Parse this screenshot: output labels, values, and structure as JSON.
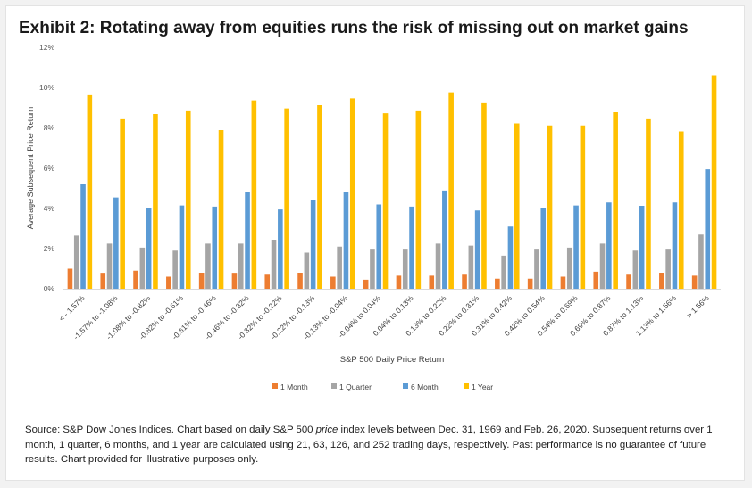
{
  "title": "Exhibit 2:  Rotating away from equities runs the risk of missing out on market gains",
  "chart_data": {
    "type": "bar",
    "xlabel": "S&P 500 Daily Price Return",
    "ylabel": "Average Subsequent Price Return",
    "ylim": [
      0,
      12
    ],
    "yticks": [
      0,
      2,
      4,
      6,
      8,
      10,
      12
    ],
    "ytick_labels": [
      "0%",
      "2%",
      "4%",
      "6%",
      "8%",
      "10%",
      "12%"
    ],
    "grid": false,
    "legend_position": "bottom",
    "categories": [
      "< - 1.57%",
      "-1.57% to -1.08%",
      "-1.08% to -0.82%",
      "-0.82% to -0.61%",
      "-0.61% to -0.46%",
      "-0.46% to -0.32%",
      "-0.32% to -0.22%",
      "-0.22% to -0.13%",
      "-0.13% to -0.04%",
      "-0.04% to 0.04%",
      "0.04% to 0.13%",
      "0.13% to 0.22%",
      "0.22% to 0.31%",
      "0.31% to 0.42%",
      "0.42% to 0.54%",
      "0.54% to 0.69%",
      "0.69% to 0.87%",
      "0.87% to 1.13%",
      "1.13% to 1.56%",
      "> 1.56%"
    ],
    "series": [
      {
        "name": "1 Month",
        "color": "#ED7D31",
        "values": [
          1.0,
          0.75,
          0.9,
          0.6,
          0.8,
          0.75,
          0.7,
          0.8,
          0.6,
          0.45,
          0.65,
          0.65,
          0.7,
          0.5,
          0.5,
          0.6,
          0.85,
          0.7,
          0.8,
          0.65
        ]
      },
      {
        "name": "1 Quarter",
        "color": "#A5A5A5",
        "values": [
          2.65,
          2.25,
          2.05,
          1.9,
          2.25,
          2.25,
          2.4,
          1.8,
          2.1,
          1.95,
          1.95,
          2.25,
          2.15,
          1.65,
          1.95,
          2.05,
          2.25,
          1.9,
          1.95,
          2.7
        ]
      },
      {
        "name": "6 Month",
        "color": "#5B9BD5",
        "values": [
          5.2,
          4.55,
          4.0,
          4.15,
          4.05,
          4.8,
          3.95,
          4.4,
          4.8,
          4.2,
          4.05,
          4.85,
          3.9,
          3.1,
          4.0,
          4.15,
          4.3,
          4.1,
          4.3,
          5.95
        ]
      },
      {
        "name": "1 Year",
        "color": "#FFC000",
        "values": [
          9.65,
          8.45,
          8.7,
          8.85,
          7.9,
          9.35,
          8.95,
          9.15,
          9.45,
          8.75,
          8.85,
          9.75,
          9.25,
          8.2,
          8.1,
          8.1,
          8.8,
          8.45,
          7.8,
          10.6
        ]
      }
    ]
  },
  "source_note": {
    "prefix": "Source:  S&P Dow Jones Indices.  Chart based on daily S&P 500 ",
    "italic": "price",
    "suffix": " index levels between Dec. 31, 1969 and Feb. 26, 2020.  Subsequent returns over 1 month, 1 quarter, 6 months, and 1 year are calculated using 21, 63, 126, and 252 trading days, respectively. Past performance is no guarantee of future results.  Chart provided for illustrative purposes only."
  }
}
